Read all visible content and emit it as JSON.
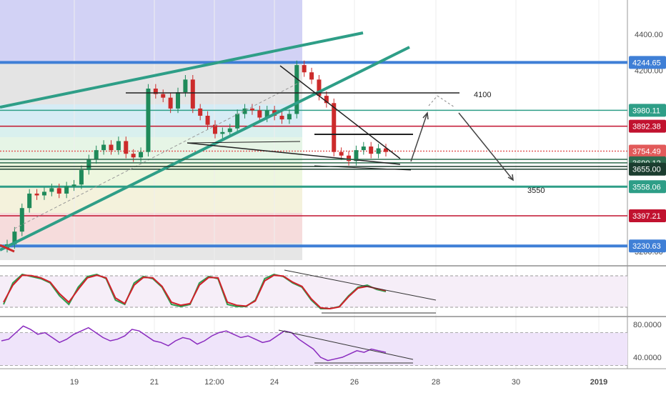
{
  "chart_data": [
    {
      "type": "candlestick",
      "title": "",
      "ylim": [
        3150,
        4520
      ],
      "y_ticks": [
        {
          "value": 4400,
          "label": "4400.00"
        },
        {
          "value": 4200,
          "label": "4200.00"
        },
        {
          "value": 3200,
          "label": "3200.00"
        }
      ],
      "x_ticks": [
        "19",
        "21",
        "12:00",
        "24",
        "26",
        "28",
        "30",
        "2019"
      ],
      "price_levels": [
        {
          "value": 4244.65,
          "label": "4244.65",
          "color": "#3f7fd6"
        },
        {
          "value": 3980.11,
          "label": "3980.11",
          "color": "#2e9e87"
        },
        {
          "value": 3892.38,
          "label": "3892.38",
          "color": "#c1122f"
        },
        {
          "value": 3754.49,
          "label": "3754.49",
          "color": "#e25a5a"
        },
        {
          "value": 3690.12,
          "label": "3690.12",
          "color": "#2f6b4f"
        },
        {
          "value": 3655.0,
          "label": "3655.00",
          "color": "#1b3d2f"
        },
        {
          "value": 3558.06,
          "label": "3558.06",
          "color": "#2e9e87"
        },
        {
          "value": 3397.21,
          "label": "3397.21",
          "color": "#c1122f"
        },
        {
          "value": 3230.63,
          "label": "3230.63",
          "color": "#3f7fd6"
        }
      ],
      "annotations": [
        {
          "text": "4100",
          "value": 4100
        },
        {
          "text": "3550",
          "value": 3550
        }
      ],
      "candles_close_approx": [
        3240,
        3310,
        3440,
        3520,
        3510,
        3530,
        3550,
        3520,
        3560,
        3570,
        3650,
        3710,
        3760,
        3790,
        3760,
        3810,
        3740,
        3720,
        3750,
        4100,
        4070,
        4050,
        3990,
        4080,
        4150,
        3990,
        3950,
        3900,
        3850,
        3860,
        3880,
        3960,
        3990,
        3980,
        3940,
        3980,
        3950,
        3930,
        3960,
        4230,
        4190,
        4150,
        4060,
        4020,
        3750,
        3730,
        3700,
        3760,
        3780,
        3740,
        3770,
        3750
      ]
    },
    {
      "type": "line",
      "title": "",
      "indicator": "stochastic",
      "series": [
        {
          "color": "#2e9e4f",
          "values": [
            20,
            70,
            90,
            85,
            80,
            70,
            40,
            20,
            60,
            85,
            90,
            80,
            30,
            20,
            70,
            85,
            80,
            60,
            20,
            15,
            20,
            70,
            85,
            80,
            20,
            15,
            15,
            30,
            80,
            90,
            85,
            70,
            60,
            30,
            10,
            10,
            15,
            40,
            60,
            65,
            55,
            50
          ]
        },
        {
          "color": "#d0202a",
          "values": [
            25,
            65,
            88,
            87,
            82,
            72,
            45,
            25,
            55,
            82,
            88,
            82,
            35,
            22,
            65,
            83,
            82,
            62,
            25,
            18,
            22,
            65,
            83,
            82,
            25,
            18,
            16,
            28,
            75,
            88,
            86,
            72,
            62,
            33,
            12,
            10,
            14,
            38,
            58,
            62,
            57,
            52
          ]
        }
      ]
    },
    {
      "type": "line",
      "title": "",
      "indicator": "rsi",
      "y_ticks": [
        {
          "value": 80,
          "label": "80.0000"
        },
        {
          "value": 40,
          "label": "40.0000"
        }
      ],
      "series": [
        {
          "color": "#8a2bbf",
          "values": [
            60,
            62,
            70,
            78,
            74,
            68,
            70,
            64,
            58,
            62,
            68,
            72,
            76,
            70,
            64,
            60,
            62,
            66,
            74,
            72,
            66,
            60,
            58,
            54,
            60,
            64,
            62,
            56,
            60,
            66,
            70,
            72,
            68,
            64,
            66,
            62,
            58,
            60,
            66,
            72,
            70,
            62,
            56,
            50,
            40,
            36,
            38,
            40,
            44,
            48,
            46,
            50,
            48,
            46
          ]
        }
      ]
    }
  ]
}
